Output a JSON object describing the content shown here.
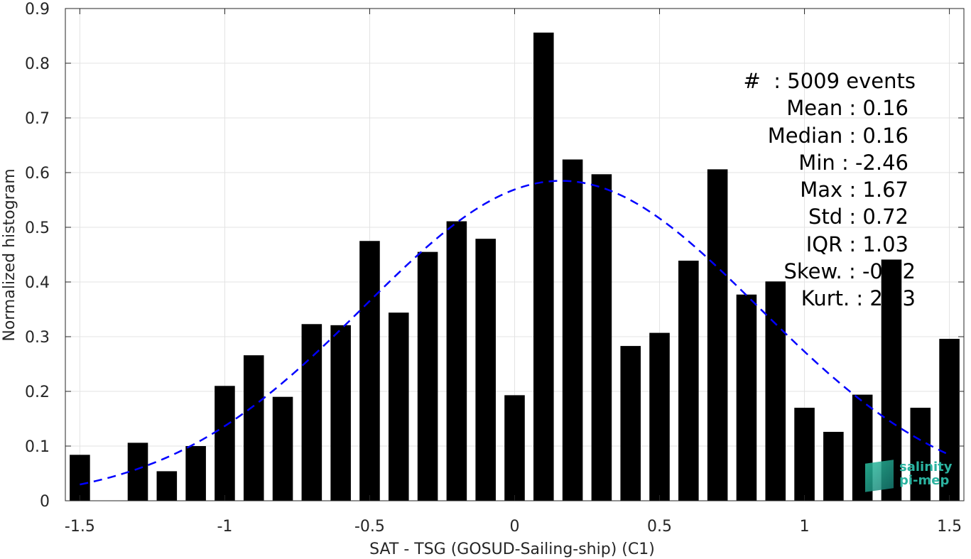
{
  "chart_data": {
    "type": "bar",
    "title": "",
    "xlabel": "SAT - TSG (GOSUD-Sailing-ship) (C1)",
    "ylabel": "Normalized histogram",
    "xlim": [
      -1.55,
      1.55
    ],
    "ylim": [
      0,
      0.9
    ],
    "grid": true,
    "x_ticks": [
      "-1.5",
      "-1",
      "-0.5",
      "0",
      "0.5",
      "1",
      "1.5"
    ],
    "y_ticks": [
      "0",
      "0.1",
      "0.2",
      "0.3",
      "0.4",
      "0.5",
      "0.6",
      "0.7",
      "0.8",
      "0.9"
    ],
    "bar_width": 0.07,
    "bars": [
      {
        "x": -1.5,
        "y": 0.084
      },
      {
        "x": -1.3,
        "y": 0.106
      },
      {
        "x": -1.2,
        "y": 0.054
      },
      {
        "x": -1.1,
        "y": 0.1
      },
      {
        "x": -1.0,
        "y": 0.21
      },
      {
        "x": -0.9,
        "y": 0.266
      },
      {
        "x": -0.8,
        "y": 0.19
      },
      {
        "x": -0.7,
        "y": 0.323
      },
      {
        "x": -0.6,
        "y": 0.321
      },
      {
        "x": -0.5,
        "y": 0.475
      },
      {
        "x": -0.4,
        "y": 0.344
      },
      {
        "x": -0.3,
        "y": 0.455
      },
      {
        "x": -0.2,
        "y": 0.511
      },
      {
        "x": -0.1,
        "y": 0.479
      },
      {
        "x": 0.0,
        "y": 0.193
      },
      {
        "x": 0.1,
        "y": 0.856
      },
      {
        "x": 0.2,
        "y": 0.624
      },
      {
        "x": 0.3,
        "y": 0.597
      },
      {
        "x": 0.5,
        "y": 0.307
      },
      {
        "x": 0.5,
        "y": 0.283
      },
      {
        "x": 0.6,
        "y": 0.439
      },
      {
        "x": 0.7,
        "y": 0.606
      },
      {
        "x": 0.8,
        "y": 0.377
      },
      {
        "x": 0.9,
        "y": 0.401
      },
      {
        "x": 1.0,
        "y": 0.17
      },
      {
        "x": 1.1,
        "y": 0.126
      },
      {
        "x": 1.2,
        "y": 0.194
      },
      {
        "x": 1.3,
        "y": 0.441
      },
      {
        "x": 1.4,
        "y": 0.17
      },
      {
        "x": 1.5,
        "y": 0.296
      }
    ],
    "fit_curve": {
      "style": "dashed",
      "color": "#0000ff",
      "mean": 0.16,
      "std": 0.68,
      "peak": 0.585,
      "x_range": [
        -1.5,
        1.5
      ]
    },
    "bar_color": "#000000"
  },
  "stats": {
    "events": "#  : 5009 events",
    "mean": "Mean : 0.16",
    "median": "Median : 0.16",
    "min": "Min : -2.46",
    "max": "Max : 1.67",
    "std": "Std : 0.72",
    "iqr": "IQR : 1.03",
    "skew": "Skew. : -0.02",
    "kurt": "Kurt. : 2.33"
  },
  "logo": {
    "line1": "salinity",
    "line2": "pi-mep"
  }
}
